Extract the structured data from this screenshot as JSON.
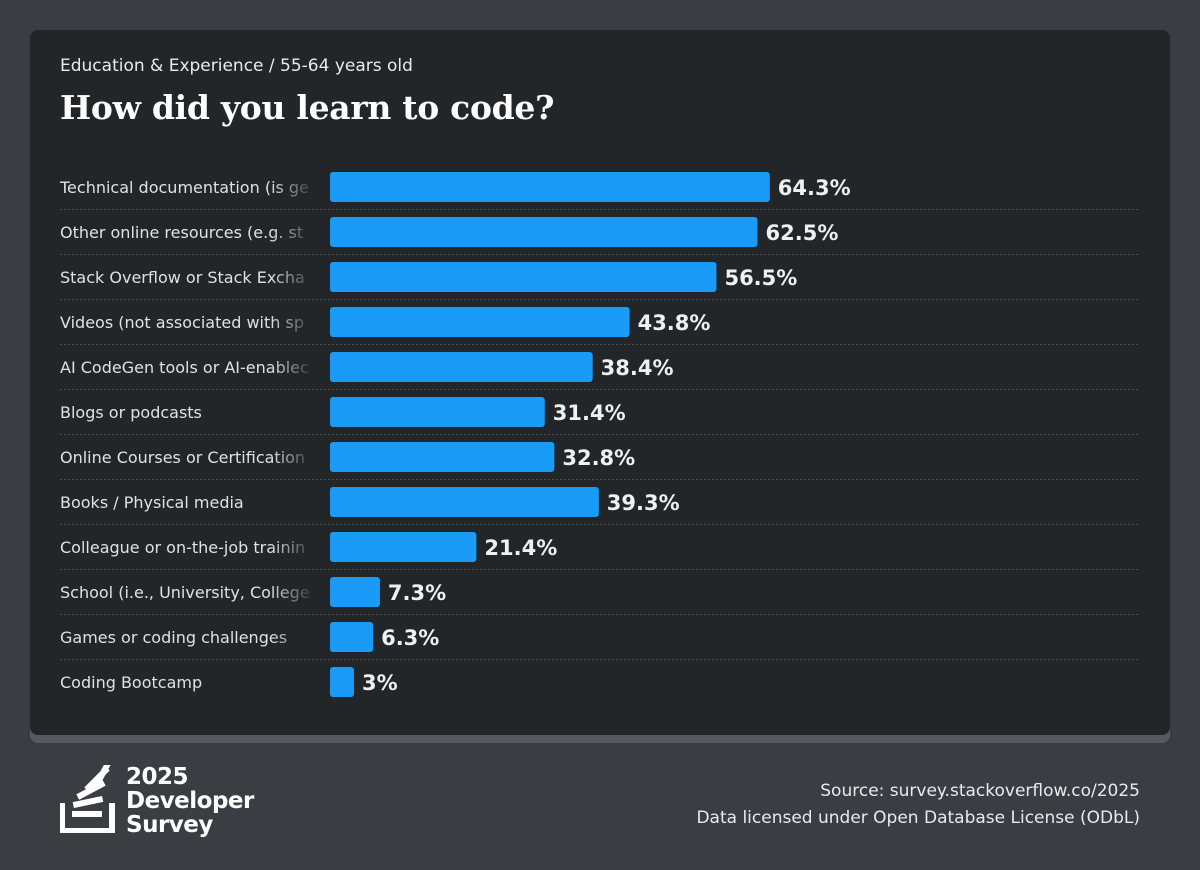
{
  "header": {
    "breadcrumb": "Education & Experience / 55-64 years old",
    "title": "How did you learn to code?"
  },
  "chart_data": {
    "type": "bar",
    "orientation": "horizontal",
    "title": "How did you learn to code?",
    "categories": [
      "Technical documentation (is ge",
      "Other online resources (e.g. st",
      "Stack Overflow or Stack Excha",
      "Videos (not associated with sp",
      "AI CodeGen tools or AI-enablec",
      "Blogs or podcasts",
      "Online Courses or Certification",
      "Books / Physical media",
      "Colleague or on-the-job trainin",
      "School (i.e., University, College",
      "Games or coding challenges",
      "Coding Bootcamp"
    ],
    "values": [
      64.3,
      62.5,
      56.5,
      43.8,
      38.4,
      31.4,
      32.8,
      39.3,
      21.4,
      7.3,
      6.3,
      3
    ],
    "value_labels": [
      "64.3%",
      "62.5%",
      "56.5%",
      "43.8%",
      "38.4%",
      "31.4%",
      "32.8%",
      "39.3%",
      "21.4%",
      "7.3%",
      "6.3%",
      "3%"
    ],
    "xlim": [
      0,
      100
    ],
    "grid": false,
    "bar_color": "#1a9bf7"
  },
  "logo": {
    "line1": "2025",
    "line2": "Developer",
    "line3": "Survey"
  },
  "footer": {
    "source": "Source: survey.stackoverflow.co/2025",
    "license": "Data licensed under Open Database License (ODbL)"
  },
  "colors": {
    "background": "#3a3e42",
    "card": "#232629",
    "bar": "#1a9bf7"
  }
}
